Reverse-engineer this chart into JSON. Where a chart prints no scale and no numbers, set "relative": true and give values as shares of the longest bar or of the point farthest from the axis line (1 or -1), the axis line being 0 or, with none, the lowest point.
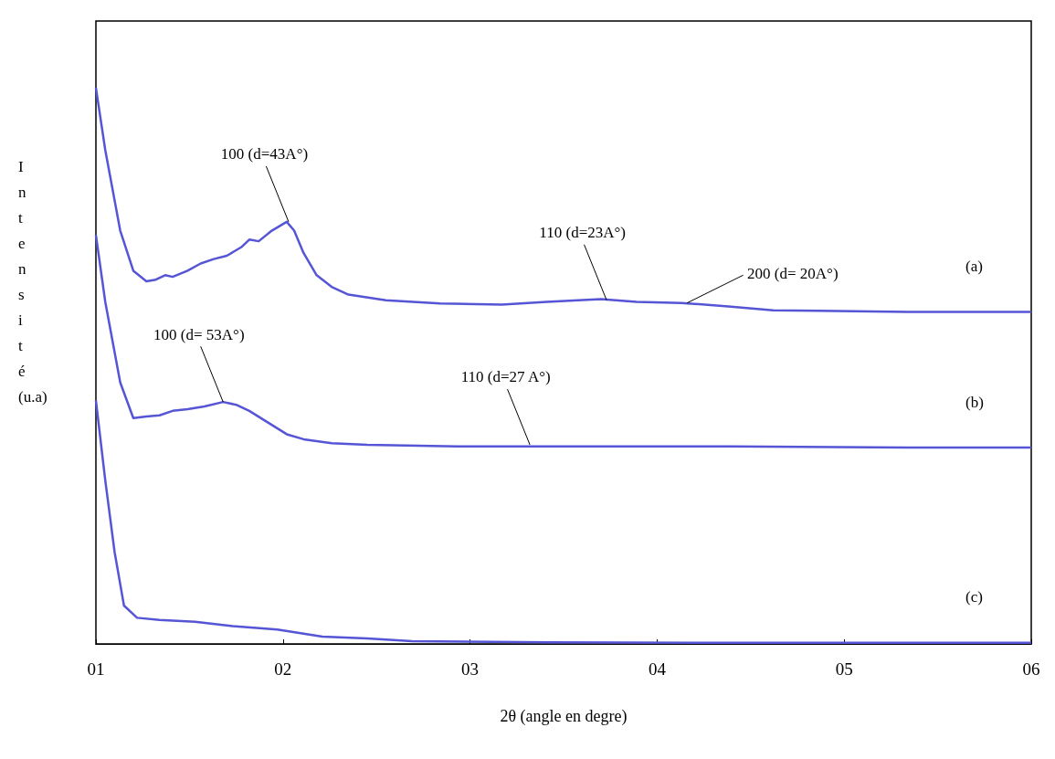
{
  "chart_data": {
    "type": "line",
    "relative": true,
    "xlabel": "2θ (angle en degre)",
    "ylabel": "Intensité (u.a)",
    "xlim": [
      1,
      6
    ],
    "xticks": [
      {
        "value": 1,
        "label": "01"
      },
      {
        "value": 2,
        "label": "02"
      },
      {
        "value": 3,
        "label": "03"
      },
      {
        "value": 4,
        "label": "04"
      },
      {
        "value": 5,
        "label": "05"
      },
      {
        "value": 6,
        "label": "06"
      }
    ],
    "grid": false,
    "legend": false,
    "marker": "none",
    "line_style": "solid",
    "series": [
      {
        "name": "(a)",
        "color": "#5555d5",
        "x": [
          1,
          1.05,
          1.13,
          1.2,
          1.27,
          1.32,
          1.37,
          1.41,
          1.49,
          1.56,
          1.63,
          1.7,
          1.78,
          1.82,
          1.87,
          1.94,
          2.02,
          2.06,
          2.11,
          2.18,
          2.26,
          2.35,
          2.55,
          2.84,
          3.17,
          3.41,
          3.7,
          3.89,
          4.13,
          4.38,
          4.62,
          4.86,
          5.34,
          6
        ],
        "values": [
          1,
          0.888,
          0.743,
          0.671,
          0.652,
          0.655,
          0.663,
          0.66,
          0.671,
          0.684,
          0.692,
          0.698,
          0.714,
          0.727,
          0.724,
          0.743,
          0.759,
          0.743,
          0.703,
          0.663,
          0.642,
          0.628,
          0.618,
          0.612,
          0.61,
          0.615,
          0.62,
          0.615,
          0.613,
          0.607,
          0.6,
          0.599,
          0.597,
          0.597
        ]
      },
      {
        "name": "(b)",
        "color": "#5555d5",
        "x": [
          1,
          1.05,
          1.13,
          1.2,
          1.27,
          1.34,
          1.41,
          1.49,
          1.58,
          1.68,
          1.75,
          1.82,
          1.92,
          2.02,
          2.11,
          2.26,
          2.45,
          2.93,
          3.41,
          4.38,
          5.34,
          6
        ],
        "values": [
          0.735,
          0.615,
          0.47,
          0.406,
          0.409,
          0.411,
          0.419,
          0.422,
          0.427,
          0.435,
          0.43,
          0.419,
          0.398,
          0.377,
          0.368,
          0.361,
          0.358,
          0.355,
          0.355,
          0.355,
          0.353,
          0.353
        ]
      },
      {
        "name": "(c)",
        "color": "#5555d5",
        "x": [
          1,
          1.05,
          1.1,
          1.15,
          1.22,
          1.34,
          1.53,
          1.73,
          1.97,
          2.21,
          2.45,
          2.69,
          3.41,
          4.38,
          6
        ],
        "values": [
          0.438,
          0.294,
          0.165,
          0.069,
          0.047,
          0.043,
          0.04,
          0.032,
          0.026,
          0.013,
          0.01,
          0.005,
          0.003,
          0.002,
          0.002
        ]
      }
    ],
    "annotations": [
      {
        "text": "100 (d=43A°)",
        "x": 2.03,
        "y": 0.759
      },
      {
        "text": "110 (d=23A°)",
        "x": 3.73,
        "y": 0.618
      },
      {
        "text": "200 (d= 20A°)",
        "x": 4.16,
        "y": 0.613
      },
      {
        "text": "100 (d= 53A°)",
        "x": 1.68,
        "y": 0.435
      },
      {
        "text": "110 (d=27 A°)",
        "x": 3.32,
        "y": 0.358
      }
    ]
  }
}
